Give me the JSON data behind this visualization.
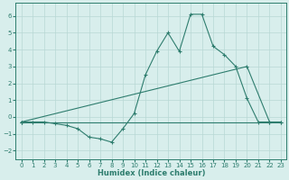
{
  "line1_x": [
    0,
    1,
    2,
    3,
    4,
    5,
    6,
    7,
    8,
    9,
    10,
    11,
    12,
    13,
    14,
    15,
    16,
    17,
    18,
    19,
    20,
    21,
    22,
    23
  ],
  "line1_y": [
    -0.3,
    -0.3,
    -0.3,
    -0.4,
    -0.5,
    -0.7,
    -1.2,
    -1.3,
    -1.5,
    -0.7,
    0.2,
    2.5,
    3.9,
    5.0,
    3.9,
    6.1,
    6.1,
    4.2,
    3.7,
    3.0,
    1.1,
    -0.3,
    -0.3,
    -0.3
  ],
  "line2_x": [
    0,
    20,
    22
  ],
  "line2_y": [
    -0.3,
    3.0,
    -0.3
  ],
  "line3_x": [
    0,
    23
  ],
  "line3_y": [
    -0.3,
    -0.3
  ],
  "color": "#2e7d6e",
  "bg_color": "#d8eeec",
  "grid_color": "#b8d8d4",
  "xlabel": "Humidex (Indice chaleur)",
  "xlim": [
    -0.5,
    23.5
  ],
  "ylim": [
    -2.5,
    6.8
  ],
  "yticks": [
    -2,
    -1,
    0,
    1,
    2,
    3,
    4,
    5,
    6
  ],
  "xticks": [
    0,
    1,
    2,
    3,
    4,
    5,
    6,
    7,
    8,
    9,
    10,
    11,
    12,
    13,
    14,
    15,
    16,
    17,
    18,
    19,
    20,
    21,
    22,
    23
  ],
  "tick_fontsize": 5.0,
  "xlabel_fontsize": 6.0
}
